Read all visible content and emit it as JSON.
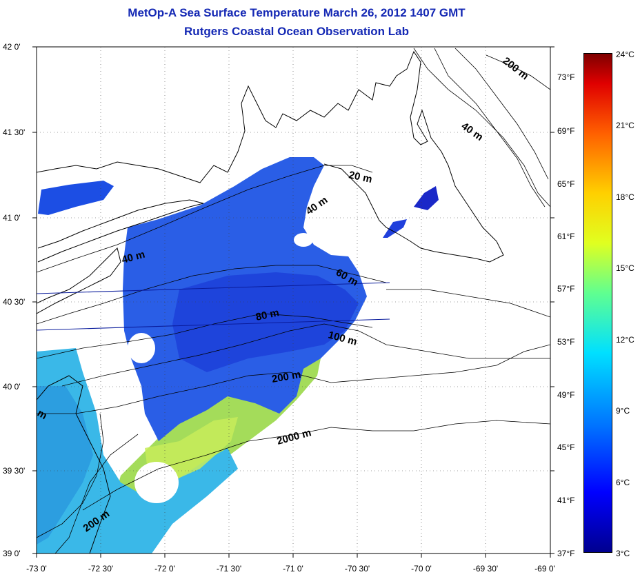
{
  "title": {
    "line1": "MetOp-A Sea Surface Temperature March 26, 2012 1407 GMT",
    "line2": "Rutgers Coastal Ocean Observation Lab"
  },
  "axes": {
    "lat_labels": [
      "42 0'",
      "41 30'",
      "41 0'",
      "40 30'",
      "40 0'",
      "39 30'",
      "39 0'"
    ],
    "lon_labels": [
      "-73 0'",
      "-72 30'",
      "-72 0'",
      "-71 30'",
      "-71 0'",
      "-70 30'",
      "-70 0'",
      "-69 30'",
      "-69 0'"
    ],
    "grid": "dotted"
  },
  "depth_contour_labels": [
    "20 m",
    "40 m",
    "40 m",
    "40 m",
    "60 m",
    "80 m",
    "100 m",
    "200 m",
    "2000 m",
    "200 m",
    "200 m",
    "m"
  ],
  "colorbar": {
    "celsius_labels": [
      "24°C",
      "21°C",
      "18°C",
      "15°C",
      "12°C",
      "9°C",
      "6°C",
      "3°C"
    ],
    "fahrenheit_labels": [
      "73°F",
      "69°F",
      "65°F",
      "61°F",
      "57°F",
      "53°F",
      "49°F",
      "45°F",
      "41°F",
      "37°F"
    ],
    "colors": [
      "#00008f",
      "#0000ff",
      "#0070ff",
      "#00e0ff",
      "#60ff90",
      "#e0ff20",
      "#ffd000",
      "#ff6000",
      "#e00000",
      "#7f0000"
    ]
  },
  "colors": {
    "title": "#1428b4",
    "water_main": "#2a5ce6",
    "water_dark": "#1a3cdc",
    "water_warm": "#a8e050",
    "water_cyan": "#2aa8ec"
  }
}
